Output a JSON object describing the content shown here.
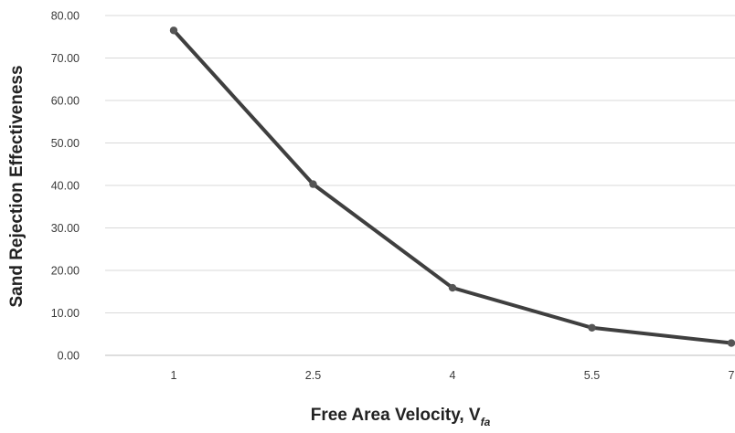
{
  "chart_data": {
    "type": "line",
    "x": [
      "1",
      "2.5",
      "4",
      "5.5",
      "7"
    ],
    "series": [
      {
        "values": [
          76.5,
          40.3,
          15.9,
          6.5,
          2.9
        ]
      }
    ],
    "y_ticks": [
      "0.00",
      "10.00",
      "20.00",
      "30.00",
      "40.00",
      "50.00",
      "60.00",
      "70.00",
      "80.00"
    ],
    "ylim": [
      0,
      80
    ],
    "grid": "horizontal",
    "xlabel_main": "Free Area Velocity, V",
    "xlabel_subscript": "fa",
    "ylabel": "Sand Rejection Effectiveness",
    "colors": {
      "line": "#3f3f3f",
      "grid": "#d9d9d9",
      "text": "#3a3a3a"
    }
  }
}
